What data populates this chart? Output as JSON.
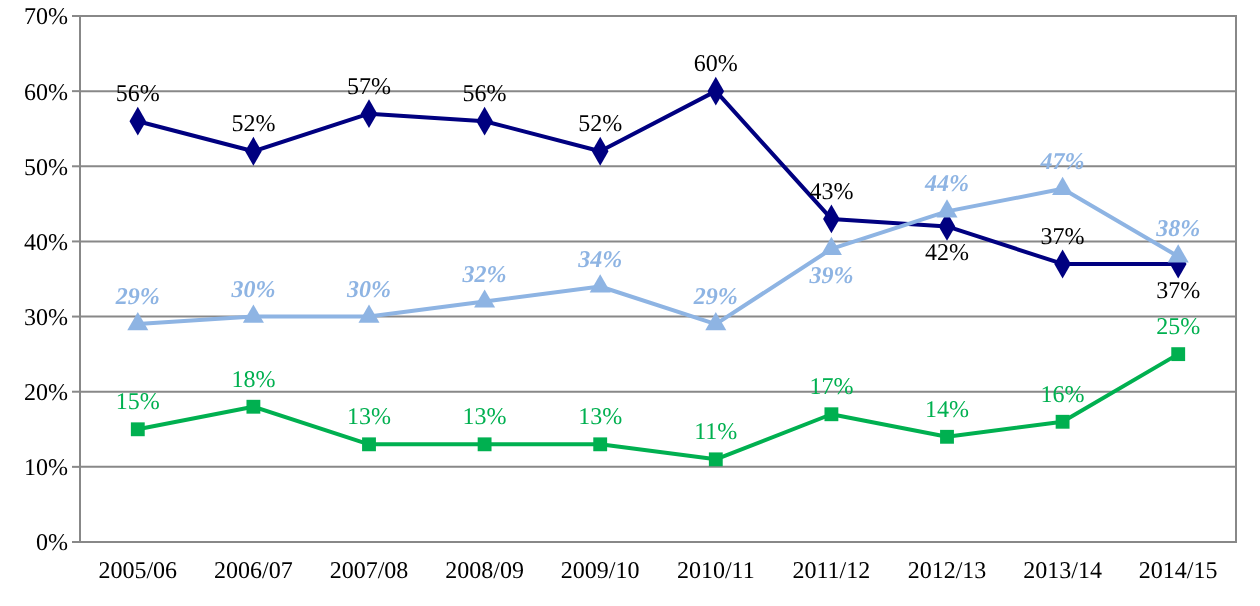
{
  "chart_data": {
    "type": "line",
    "categories": [
      "2005/06",
      "2006/07",
      "2007/08",
      "2008/09",
      "2009/10",
      "2010/11",
      "2011/12",
      "2012/13",
      "2013/14",
      "2014/15"
    ],
    "series": [
      {
        "color": "#000080",
        "marker": "diamond",
        "values": [
          56,
          52,
          57,
          56,
          52,
          60,
          43,
          42,
          37,
          37
        ],
        "value_labels": [
          "56%",
          "52%",
          "57%",
          "56%",
          "52%",
          "60%",
          "43%",
          "42%",
          "37%",
          "37%"
        ]
      },
      {
        "color": "#8eb4e3",
        "marker": "triangle",
        "values": [
          29,
          30,
          30,
          32,
          34,
          29,
          39,
          44,
          47,
          38
        ],
        "value_labels": [
          "29%",
          "30%",
          "30%",
          "32%",
          "34%",
          "29%",
          "39%",
          "44%",
          "47%",
          "38%"
        ]
      },
      {
        "color": "#00b050",
        "marker": "square",
        "values": [
          15,
          18,
          13,
          13,
          13,
          11,
          17,
          14,
          16,
          25
        ],
        "value_labels": [
          "15%",
          "18%",
          "13%",
          "13%",
          "13%",
          "11%",
          "17%",
          "14%",
          "16%",
          "25%"
        ]
      }
    ],
    "ylim": [
      0,
      70
    ],
    "yticks": [
      {
        "value": 0,
        "label": "0%"
      },
      {
        "value": 10,
        "label": "10%"
      },
      {
        "value": 20,
        "label": "20%"
      },
      {
        "value": 30,
        "label": "30%"
      },
      {
        "value": 40,
        "label": "40%"
      },
      {
        "value": 50,
        "label": "50%"
      },
      {
        "value": 60,
        "label": "60%"
      },
      {
        "value": 70,
        "label": "70%"
      }
    ],
    "grid": "y"
  }
}
